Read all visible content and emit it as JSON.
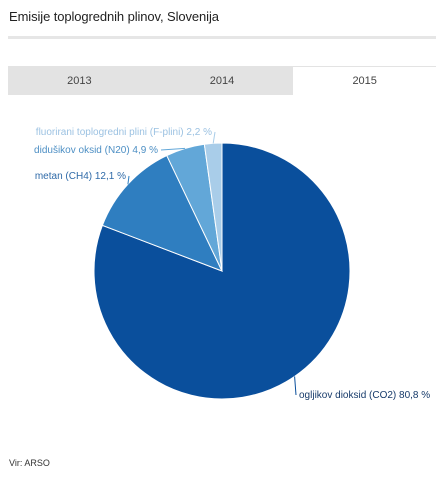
{
  "header": {
    "title": "Emisije toplogrednih plinov, Slovenija"
  },
  "tabs": [
    {
      "label": "2013",
      "active": false
    },
    {
      "label": "2014",
      "active": false
    },
    {
      "label": "2015",
      "active": true
    }
  ],
  "chart_data": {
    "type": "pie",
    "title": "",
    "slices": [
      {
        "label": "ogljikov dioksid (CO2) 80,8 %",
        "value": 80.8,
        "color": "#0a4f9c",
        "label_color": "#163a6a"
      },
      {
        "label": "metan (CH4) 12,1 %",
        "value": 12.1,
        "color": "#2f7ec0",
        "label_color": "#2f6aa8"
      },
      {
        "label": "didušikov oksid (N20) 4,9 %",
        "value": 4.9,
        "color": "#62a7d8",
        "label_color": "#4d8fc4"
      },
      {
        "label": "fluorirani toplogredni plini (F-plini) 2,2 %",
        "value": 2.2,
        "color": "#a9cde9",
        "label_color": "#9cc2e2"
      }
    ]
  },
  "footer": {
    "source": "Vir: ARSO"
  }
}
